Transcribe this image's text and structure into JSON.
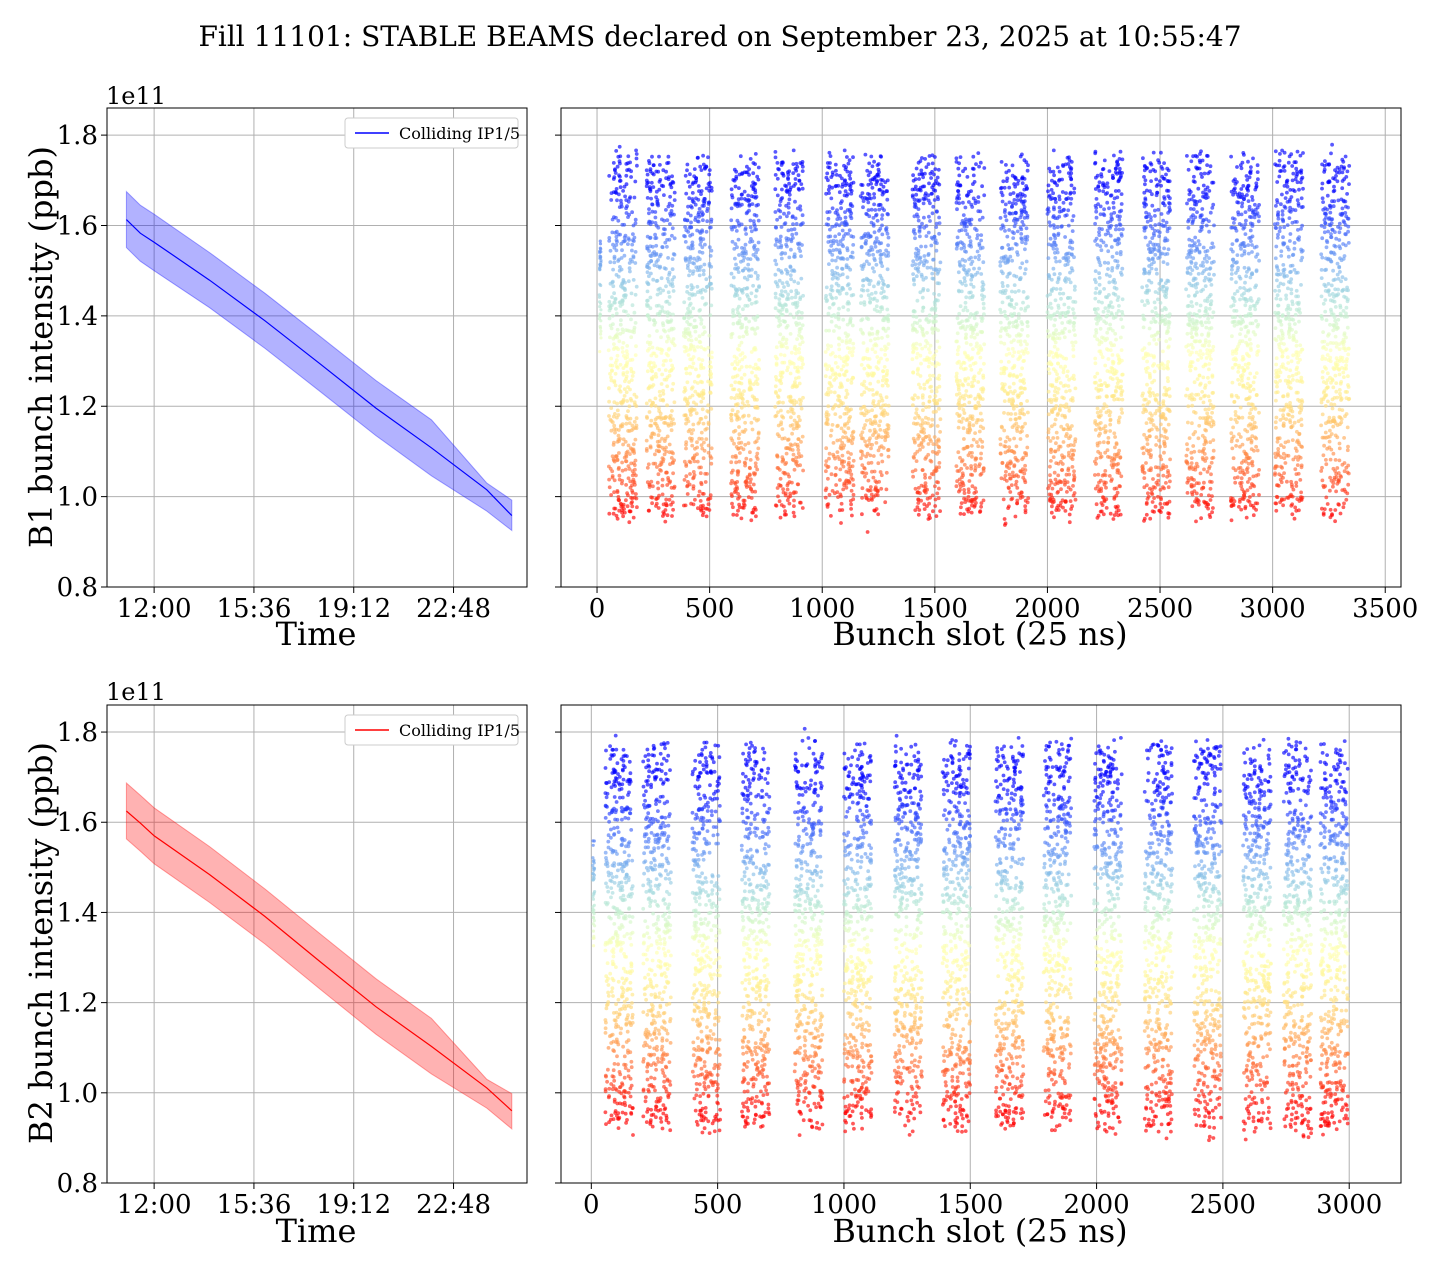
{
  "figure": {
    "title": "Fill 11101: STABLE BEAMS declared on September 23, 2025 at 10:55:47"
  },
  "chart_data": [
    {
      "type": "line",
      "panel": "B1 time evolution",
      "title": "",
      "xlabel": "Time",
      "ylabel": "B1 bunch intensity (ppb)",
      "y_offset_text": "1e11",
      "y_scale": 100000000000.0,
      "ylim": [
        0.8,
        1.86
      ],
      "y_ticks": [
        "0.8",
        "1.0",
        "1.2",
        "1.4",
        "1.6",
        "1.8"
      ],
      "x_ticks": [
        "12:00",
        "15:36",
        "19:12",
        "22:48"
      ],
      "xlim_hours": [
        10.3,
        25.45
      ],
      "grid": true,
      "legend": {
        "placement": "top-right",
        "entries": [
          "Colliding IP1/5"
        ]
      },
      "series": [
        {
          "name": "Colliding IP1/5",
          "color": "#0000ff",
          "x_hours": [
            11.0,
            11.5,
            12.0,
            14.0,
            16.0,
            18.0,
            20.0,
            22.0,
            24.0,
            24.9
          ],
          "mean": [
            1.613,
            1.583,
            1.563,
            1.479,
            1.389,
            1.293,
            1.196,
            1.108,
            1.015,
            0.958
          ],
          "upper": [
            1.675,
            1.645,
            1.625,
            1.54,
            1.45,
            1.354,
            1.257,
            1.17,
            1.03,
            0.992
          ],
          "lower": [
            1.551,
            1.521,
            1.5,
            1.418,
            1.328,
            1.232,
            1.135,
            1.046,
            0.968,
            0.925
          ]
        }
      ]
    },
    {
      "type": "scatter",
      "panel": "B1 bunch-by-bunch",
      "title": "",
      "xlabel": "Bunch slot (25 ns)",
      "ylabel": "",
      "xlim": [
        -160,
        3570
      ],
      "ylim": [
        0.8,
        1.86
      ],
      "x_ticks": [
        "0",
        "500",
        "1000",
        "1500",
        "2000",
        "2500",
        "3000",
        "3500"
      ],
      "grid": true,
      "colormap": "rainbow (red = low, violet = high)",
      "trains_start_slots": [
        52,
        220,
        385,
        595,
        790,
        1015,
        1170,
        1400,
        1595,
        1790,
        2000,
        2210,
        2420,
        2615,
        2815,
        3010,
        3215
      ],
      "train_width_slots": 125,
      "pilot_slot": 10,
      "value_range": [
        0.88,
        1.79
      ]
    },
    {
      "type": "line",
      "panel": "B2 time evolution",
      "title": "",
      "xlabel": "Time",
      "ylabel": "B2 bunch intensity (ppb)",
      "y_offset_text": "1e11",
      "y_scale": 100000000000.0,
      "ylim": [
        0.8,
        1.86
      ],
      "y_ticks": [
        "0.8",
        "1.0",
        "1.2",
        "1.4",
        "1.6",
        "1.8"
      ],
      "x_ticks": [
        "12:00",
        "15:36",
        "19:12",
        "22:48"
      ],
      "xlim_hours": [
        10.3,
        25.45
      ],
      "grid": true,
      "legend": {
        "placement": "top-right",
        "entries": [
          "Colliding IP1/5"
        ]
      },
      "series": [
        {
          "name": "Colliding IP1/5",
          "color": "#ff0000",
          "x_hours": [
            11.0,
            11.5,
            12.0,
            14.0,
            16.0,
            18.0,
            20.0,
            22.0,
            24.0,
            24.9
          ],
          "mean": [
            1.625,
            1.598,
            1.57,
            1.484,
            1.391,
            1.29,
            1.191,
            1.103,
            1.011,
            0.96
          ],
          "upper": [
            1.687,
            1.66,
            1.632,
            1.546,
            1.452,
            1.352,
            1.253,
            1.165,
            1.03,
            0.998
          ],
          "lower": [
            1.563,
            1.536,
            1.508,
            1.422,
            1.33,
            1.229,
            1.13,
            1.042,
            0.966,
            0.92
          ]
        }
      ]
    },
    {
      "type": "scatter",
      "panel": "B2 bunch-by-bunch",
      "title": "",
      "xlabel": "Bunch slot (25 ns)",
      "ylabel": "",
      "xlim": [
        -120,
        3205
      ],
      "ylim": [
        0.8,
        1.86
      ],
      "x_ticks": [
        "0",
        "500",
        "1000",
        "1500",
        "2000",
        "2500",
        "3000"
      ],
      "grid": true,
      "colormap": "rainbow (red = low, violet = high)",
      "trains_start_slots": [
        55,
        205,
        400,
        595,
        805,
        1000,
        1200,
        1390,
        1600,
        1790,
        1990,
        2190,
        2385,
        2580,
        2740,
        2885
      ],
      "train_width_slots": 110,
      "pilot_slot": 5,
      "value_range": [
        0.84,
        1.81
      ]
    }
  ]
}
